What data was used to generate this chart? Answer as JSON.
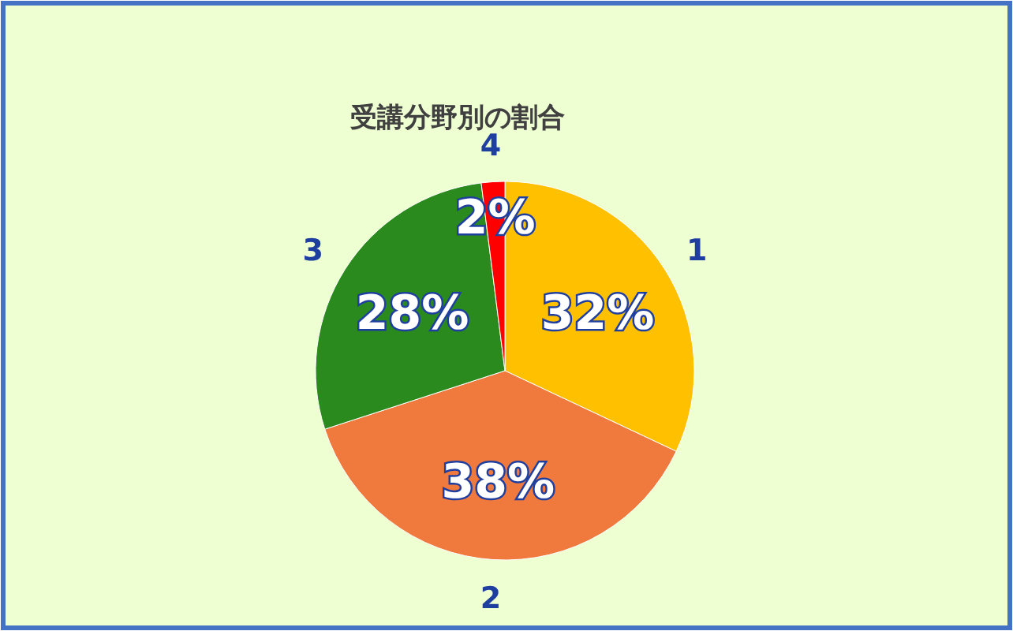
{
  "chart_data": {
    "type": "pie",
    "title": "受講分野別の割合",
    "categories": [
      "1",
      "2",
      "3",
      "4"
    ],
    "values": [
      32,
      38,
      28,
      2
    ],
    "value_labels": [
      "32%",
      "38%",
      "28%",
      "2%"
    ],
    "colors": [
      "#ffc000",
      "#f07a3e",
      "#2a8a1e",
      "#ff0000"
    ]
  }
}
